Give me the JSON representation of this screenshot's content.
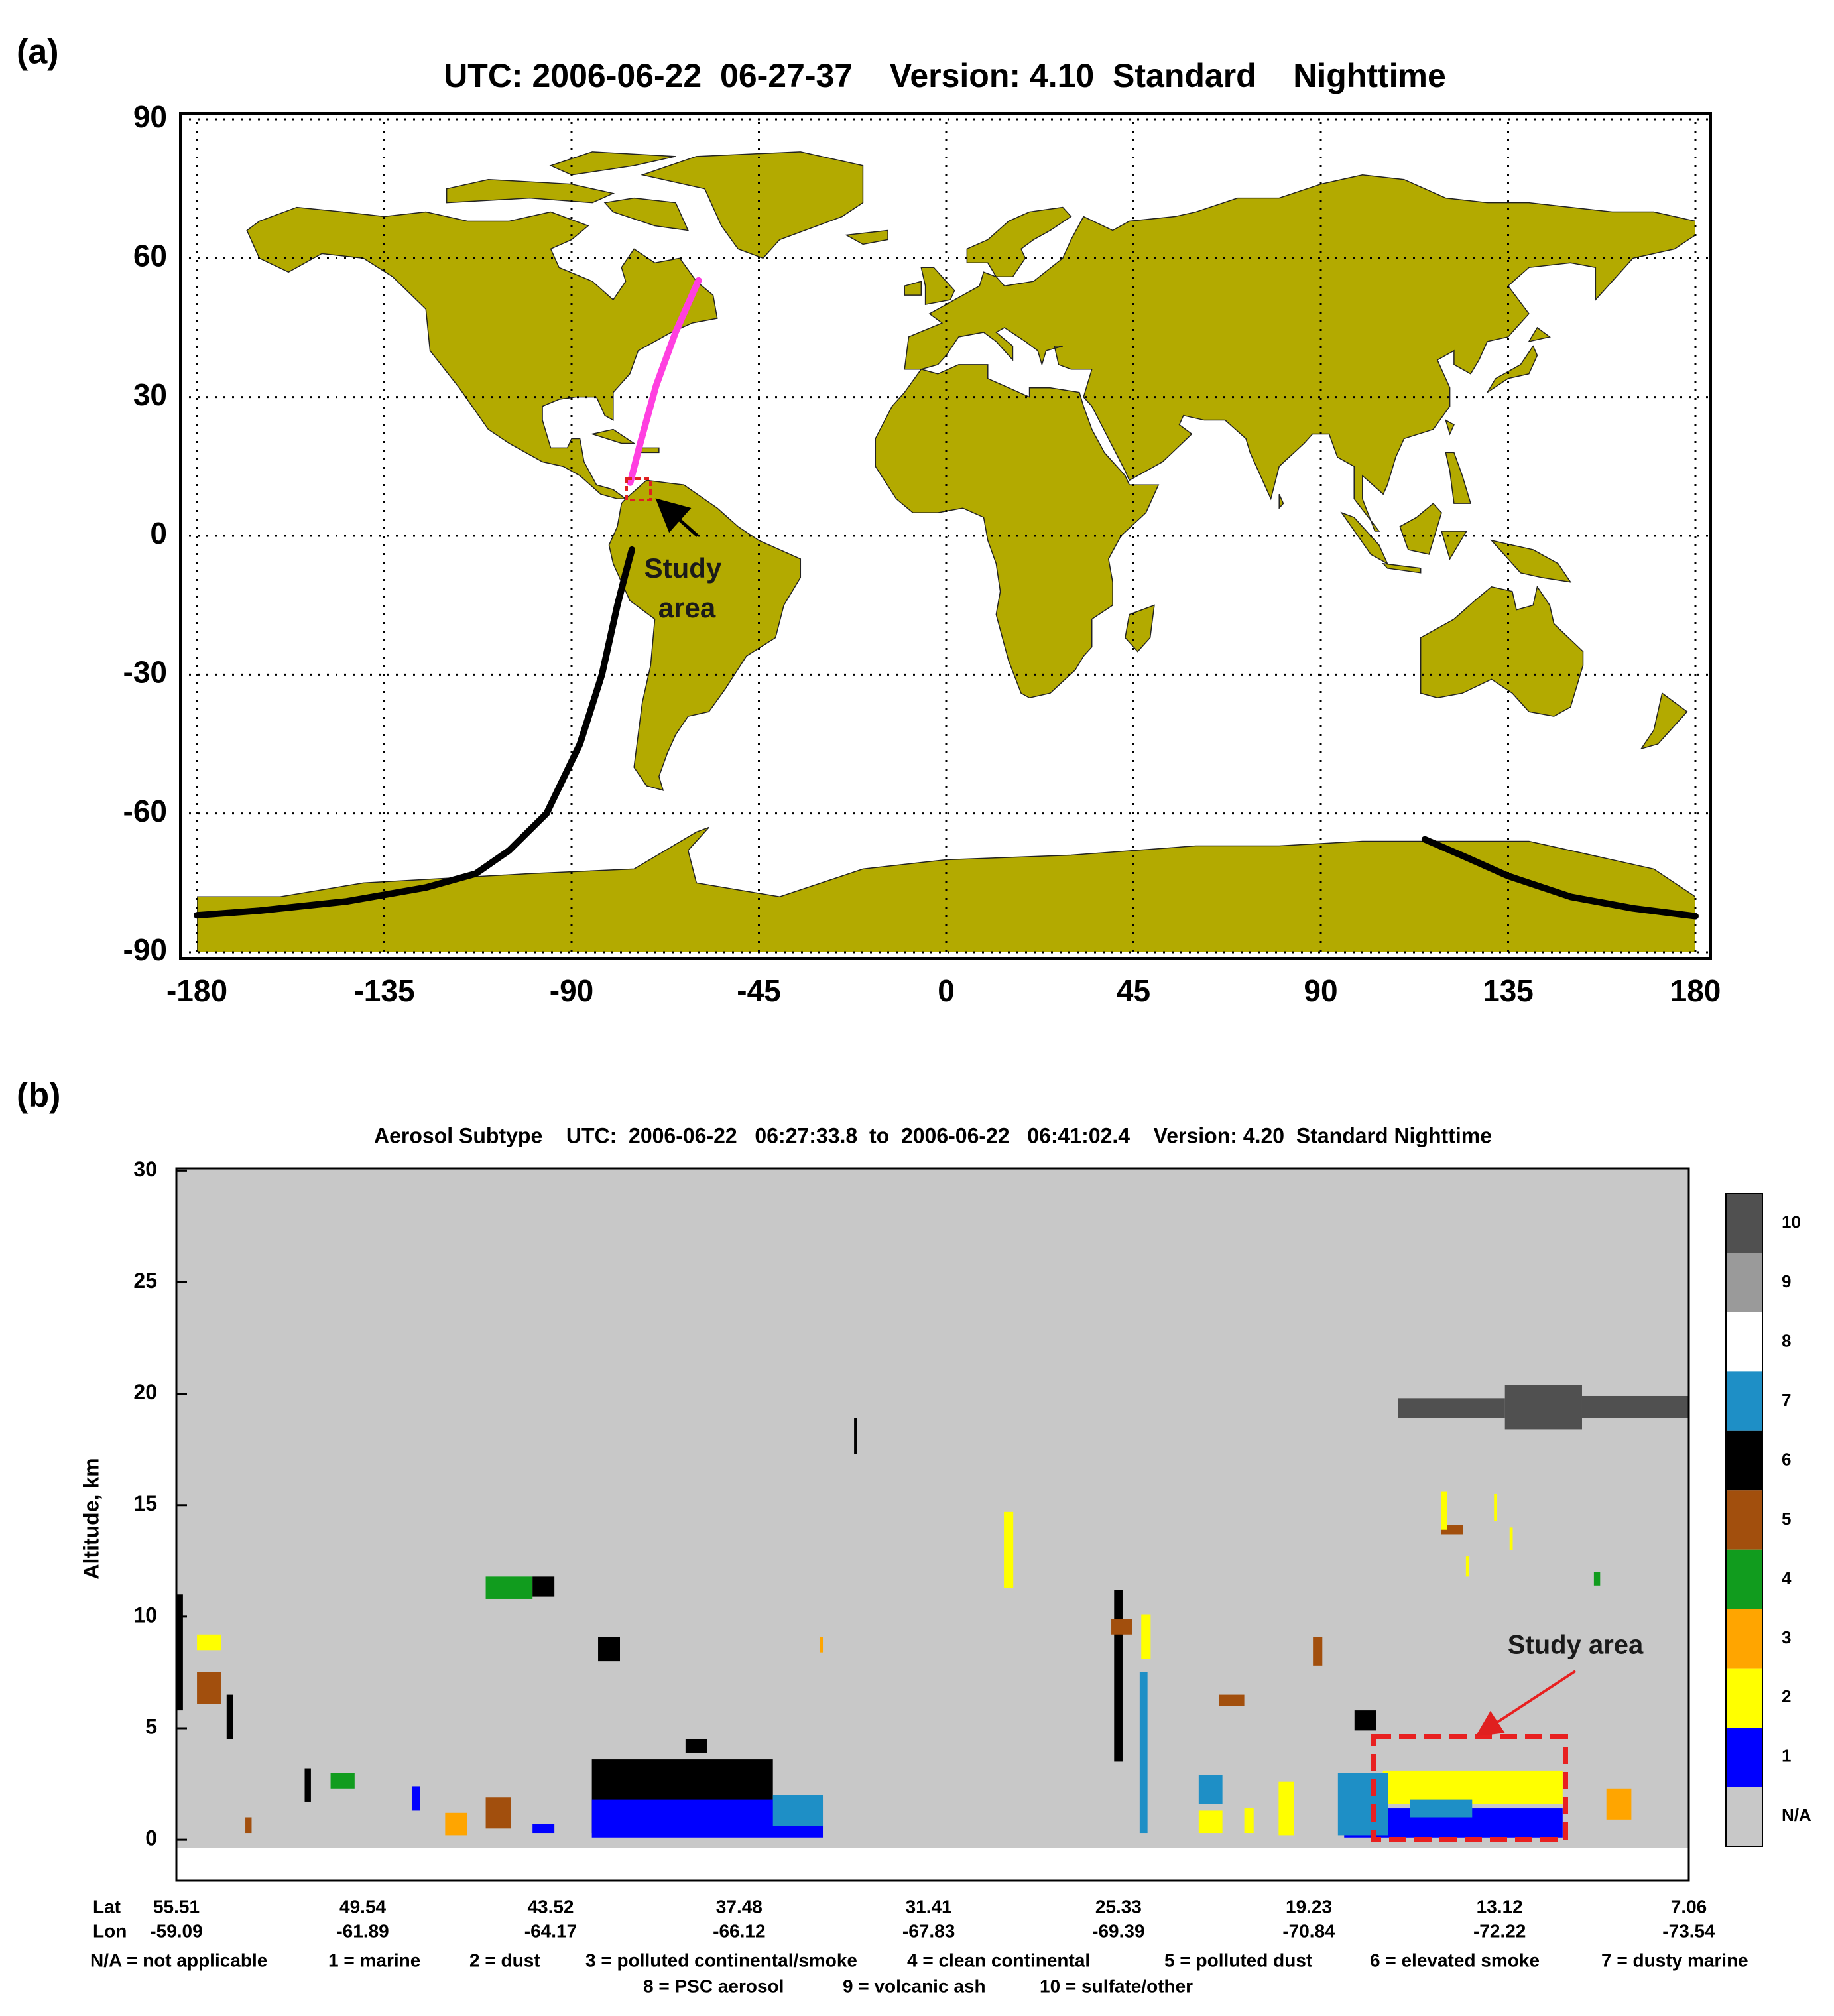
{
  "chart_data": [
    {
      "type": "map",
      "panel": "(a)",
      "title": "UTC: 2006-06-22  06-27-37    Version: 4.10  Standard    Nighttime",
      "xlim": [
        -180,
        180
      ],
      "ylim": [
        -90,
        90
      ],
      "xticks": [
        -180,
        -135,
        -90,
        -45,
        0,
        45,
        90,
        135,
        180
      ],
      "yticks": [
        -90,
        -60,
        -30,
        0,
        30,
        60,
        90
      ],
      "grid": true,
      "land_color": "#b3aa00",
      "series": [
        {
          "color": "#ff3fe0",
          "x": [
            -75.9,
            -73.5,
            -69.7,
            -65,
            -59.5
          ],
          "y": [
            11.5,
            20,
            32.4,
            44,
            55.2
          ]
        },
        {
          "color": "#000000",
          "x": [
            -75.5,
            -77,
            -79,
            -82.7,
            -88,
            -96,
            -105,
            -113,
            -125,
            -144,
            -165,
            -180
          ],
          "y": [
            -3,
            -8,
            -15,
            -30,
            -45,
            -60,
            -68,
            -73,
            -76,
            -79,
            -81,
            -82
          ]
        },
        {
          "color": "#000000",
          "x": [
            115,
            125,
            135,
            150,
            165,
            180
          ],
          "y": [
            -65.6,
            -69.5,
            -73.5,
            -78,
            -80.5,
            -82.2
          ]
        }
      ],
      "annotation": [
        "Study",
        "area"
      ]
    },
    {
      "type": "curtain",
      "panel": "(b)",
      "title": "Aerosol Subtype    UTC:  2006-06-22   06:27:33.8  to  2006-06-22   06:41:02.4    Version: 4.20  Standard Nighttime",
      "ylabel": "Altitude, km",
      "ylim": [
        -1.84,
        30.1
      ],
      "yticks": [
        0,
        5,
        10,
        15,
        20,
        25,
        30
      ],
      "xlim": [
        55.51,
        7.06
      ],
      "xlabel_rows": [
        "Lat",
        "Lon"
      ],
      "xticks": [
        55.51,
        49.54,
        43.52,
        37.48,
        31.41,
        25.33,
        19.23,
        13.12,
        7.06
      ],
      "lon_labels": [
        -59.09,
        -61.89,
        -64.17,
        -66.12,
        -67.83,
        -69.39,
        -70.84,
        -72.22,
        -73.54
      ],
      "colorbar": [
        {
          "label": "10",
          "color": "#505050"
        },
        {
          "label": "9",
          "color": "#9a9a9a"
        },
        {
          "label": "8",
          "color": "#ffffff"
        },
        {
          "label": "7",
          "color": "#1e8fc6"
        },
        {
          "label": "6",
          "color": "#000000"
        },
        {
          "label": "5",
          "color": "#a24f0d"
        },
        {
          "label": "4",
          "color": "#119c1e"
        },
        {
          "label": "3",
          "color": "#ffa500"
        },
        {
          "label": "2",
          "color": "#ffff00"
        },
        {
          "label": "1",
          "color": "#0000ff"
        },
        {
          "label": "N/A",
          "color": "#c8c8c8"
        }
      ],
      "layers": [
        {
          "subtype": 10,
          "lat": [
            16.37,
            12.95
          ],
          "alt": [
            18.9,
            19.8
          ]
        },
        {
          "subtype": 10,
          "lat": [
            12.95,
            10.48
          ],
          "alt": [
            18.4,
            20.4
          ]
        },
        {
          "subtype": 10,
          "lat": [
            10.48,
            7.06
          ],
          "alt": [
            18.9,
            19.9
          ]
        },
        {
          "subtype": 6,
          "lat": [
            42.2,
            36.4
          ],
          "alt": [
            0.3,
            3.6
          ]
        },
        {
          "subtype": 1,
          "lat": [
            42.2,
            34.8
          ],
          "alt": [
            0.1,
            1.8
          ]
        },
        {
          "subtype": 7,
          "lat": [
            36.4,
            34.8
          ],
          "alt": [
            0.6,
            2.0
          ]
        },
        {
          "subtype": 2,
          "lat": [
            16.86,
            11.1
          ],
          "alt": [
            1.6,
            3.1
          ]
        },
        {
          "subtype": 1,
          "lat": [
            18.1,
            11.1
          ],
          "alt": [
            0.1,
            1.4
          ]
        },
        {
          "subtype": 7,
          "lat": [
            18.3,
            16.7
          ],
          "alt": [
            0.2,
            3.0
          ]
        },
        {
          "subtype": 7,
          "lat": [
            16.0,
            14.0
          ],
          "alt": [
            1.0,
            1.8
          ]
        },
        {
          "subtype": 6,
          "lat": [
            17.77,
            17.07
          ],
          "alt": [
            4.9,
            5.8
          ]
        },
        {
          "subtype": 4,
          "lat": [
            45.6,
            44.1
          ],
          "alt": [
            10.8,
            11.8
          ]
        },
        {
          "subtype": 6,
          "lat": [
            44.1,
            43.4
          ],
          "alt": [
            10.9,
            11.8
          ]
        },
        {
          "subtype": 6,
          "lat": [
            42.0,
            41.3
          ],
          "alt": [
            8.0,
            9.1
          ]
        },
        {
          "subtype": 6,
          "lat": [
            39.2,
            38.5
          ],
          "alt": [
            3.9,
            4.5
          ]
        },
        {
          "subtype": 2,
          "lat": [
            54.85,
            54.07
          ],
          "alt": [
            8.5,
            9.2
          ]
        },
        {
          "subtype": 5,
          "lat": [
            54.85,
            54.07
          ],
          "alt": [
            6.1,
            7.5
          ]
        },
        {
          "subtype": 6,
          "lat": [
            55.5,
            55.3
          ],
          "alt": [
            5.8,
            11.0
          ]
        },
        {
          "subtype": 6,
          "lat": [
            53.9,
            53.7
          ],
          "alt": [
            4.5,
            6.5
          ]
        },
        {
          "subtype": 3,
          "lat": [
            46.9,
            46.2
          ],
          "alt": [
            0.2,
            1.2
          ]
        },
        {
          "subtype": 5,
          "lat": [
            45.6,
            44.8
          ],
          "alt": [
            0.5,
            1.9
          ]
        },
        {
          "subtype": 4,
          "lat": [
            50.57,
            49.8
          ],
          "alt": [
            2.3,
            3.0
          ]
        },
        {
          "subtype": 6,
          "lat": [
            51.4,
            51.2
          ],
          "alt": [
            1.7,
            3.2
          ]
        },
        {
          "subtype": 1,
          "lat": [
            47.97,
            47.7
          ],
          "alt": [
            1.3,
            2.4
          ]
        },
        {
          "subtype": 7,
          "lat": [
            22.76,
            22.0
          ],
          "alt": [
            1.6,
            2.9
          ]
        },
        {
          "subtype": 2,
          "lat": [
            22.76,
            22.0
          ],
          "alt": [
            0.3,
            1.3
          ]
        },
        {
          "subtype": 7,
          "lat": [
            24.65,
            24.4
          ],
          "alt": [
            0.3,
            7.5
          ]
        },
        {
          "subtype": 6,
          "lat": [
            25.47,
            25.2
          ],
          "alt": [
            3.5,
            11.2
          ]
        },
        {
          "subtype": 2,
          "lat": [
            24.6,
            24.3
          ],
          "alt": [
            8.1,
            10.1
          ]
        },
        {
          "subtype": 5,
          "lat": [
            25.56,
            24.9
          ],
          "alt": [
            9.2,
            9.9
          ]
        },
        {
          "subtype": 2,
          "lat": [
            29.0,
            28.7
          ],
          "alt": [
            11.3,
            14.7
          ]
        },
        {
          "subtype": 2,
          "lat": [
            20.2,
            19.7
          ],
          "alt": [
            0.2,
            2.6
          ]
        },
        {
          "subtype": 2,
          "lat": [
            21.3,
            21.0
          ],
          "alt": [
            0.3,
            1.4
          ]
        },
        {
          "subtype": 5,
          "lat": [
            22.1,
            21.3
          ],
          "alt": [
            6.0,
            6.5
          ]
        },
        {
          "subtype": 5,
          "lat": [
            15.0,
            14.3
          ],
          "alt": [
            13.7,
            14.1
          ]
        },
        {
          "subtype": 2,
          "lat": [
            15.0,
            14.8
          ],
          "alt": [
            13.9,
            15.6
          ]
        },
        {
          "subtype": 4,
          "lat": [
            10.1,
            9.9
          ],
          "alt": [
            11.4,
            12.0
          ]
        },
        {
          "subtype": 3,
          "lat": [
            9.7,
            8.9
          ],
          "alt": [
            0.9,
            2.3
          ]
        },
        {
          "subtype": 5,
          "lat": [
            19.1,
            18.8
          ],
          "alt": [
            7.8,
            9.1
          ]
        },
        {
          "subtype": 6,
          "lat": [
            33.8,
            33.7
          ],
          "alt": [
            17.3,
            18.9
          ]
        },
        {
          "subtype": 3,
          "lat": [
            34.9,
            34.8
          ],
          "alt": [
            8.4,
            9.1
          ]
        },
        {
          "subtype": 2,
          "lat": [
            14.2,
            14.1
          ],
          "alt": [
            11.8,
            12.7
          ]
        },
        {
          "subtype": 2,
          "lat": [
            12.8,
            12.7
          ],
          "alt": [
            13.0,
            14.0
          ]
        },
        {
          "subtype": 2,
          "lat": [
            13.3,
            13.2
          ],
          "alt": [
            14.3,
            15.5
          ]
        },
        {
          "subtype": 5,
          "lat": [
            53.3,
            53.1
          ],
          "alt": [
            0.3,
            1.0
          ]
        },
        {
          "subtype": 1,
          "lat": [
            44.1,
            43.4
          ],
          "alt": [
            0.3,
            0.7
          ]
        }
      ],
      "annotation": "Study area",
      "subtype_legend": [
        [
          "N/A = not applicable",
          "1 = marine",
          "2 = dust",
          "3 = polluted continental/smoke",
          "4 = clean continental",
          "5 = polluted dust",
          "6 = elevated smoke",
          "7 = dusty marine"
        ],
        [
          "8 = PSC aerosol",
          "9 = volcanic ash",
          "10 = sulfate/other"
        ]
      ]
    }
  ]
}
